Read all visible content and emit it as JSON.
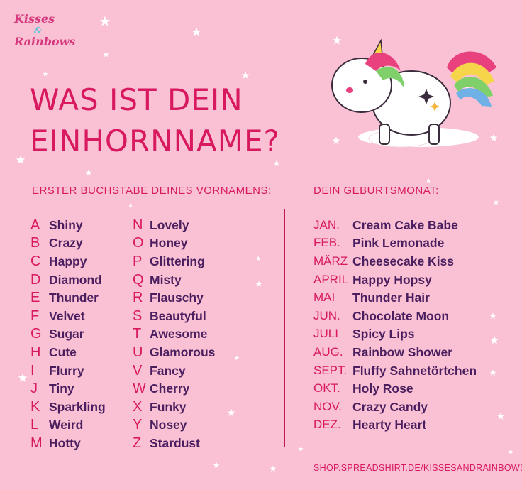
{
  "logo": {
    "line1": "Kisses",
    "amp": "&",
    "line2": "Rainbows"
  },
  "title": {
    "line1": "WAS IST DEIN",
    "line2": "EINHORNNAME?"
  },
  "letters_heading": "ERSTER BUCHSTABE DEINES VORNAMENS:",
  "months_heading": "DEIN GEBURTSMONAT:",
  "letters": [
    {
      "key": "A",
      "value": "Shiny"
    },
    {
      "key": "B",
      "value": "Crazy"
    },
    {
      "key": "C",
      "value": "Happy"
    },
    {
      "key": "D",
      "value": "Diamond"
    },
    {
      "key": "E",
      "value": "Thunder"
    },
    {
      "key": "F",
      "value": "Velvet"
    },
    {
      "key": "G",
      "value": "Sugar"
    },
    {
      "key": "H",
      "value": "Cute"
    },
    {
      "key": "I",
      "value": "Flurry"
    },
    {
      "key": "J",
      "value": "Tiny"
    },
    {
      "key": "K",
      "value": "Sparkling"
    },
    {
      "key": "L",
      "value": "Weird"
    },
    {
      "key": "M",
      "value": "Hotty"
    },
    {
      "key": "N",
      "value": "Lovely"
    },
    {
      "key": "O",
      "value": "Honey"
    },
    {
      "key": "P",
      "value": "Glittering"
    },
    {
      "key": "Q",
      "value": "Misty"
    },
    {
      "key": "R",
      "value": "Flauschy"
    },
    {
      "key": "S",
      "value": "Beautyful"
    },
    {
      "key": "T",
      "value": "Awesome"
    },
    {
      "key": "U",
      "value": "Glamorous"
    },
    {
      "key": "V",
      "value": "Fancy"
    },
    {
      "key": "W",
      "value": "Cherry"
    },
    {
      "key": "X",
      "value": "Funky"
    },
    {
      "key": "Y",
      "value": "Nosey"
    },
    {
      "key": "Z",
      "value": "Stardust"
    }
  ],
  "months": [
    {
      "key": "JAN.",
      "value": "Cream Cake Babe"
    },
    {
      "key": "FEB.",
      "value": "Pink Lemonade"
    },
    {
      "key": "MÄRZ",
      "value": "Cheesecake Kiss"
    },
    {
      "key": "APRIL",
      "value": "Happy Hopsy"
    },
    {
      "key": "MAI",
      "value": "Thunder Hair"
    },
    {
      "key": "JUN.",
      "value": "Chocolate Moon"
    },
    {
      "key": "JULI",
      "value": "Spicy Lips"
    },
    {
      "key": "AUG.",
      "value": "Rainbow Shower"
    },
    {
      "key": "SEPT.",
      "value": "Fluffy Sahnetörtchen"
    },
    {
      "key": "OKT.",
      "value": "Holy Rose"
    },
    {
      "key": "NOV.",
      "value": "Crazy Candy"
    },
    {
      "key": "DEZ.",
      "value": "Hearty Heart"
    }
  ],
  "footer": "SHOP.SPREADSHIRT.DE/KISSESANDRAINBOWS",
  "colors": {
    "background": "#f9c1d3",
    "accent": "#d8185f",
    "text": "#4b1f5f"
  }
}
